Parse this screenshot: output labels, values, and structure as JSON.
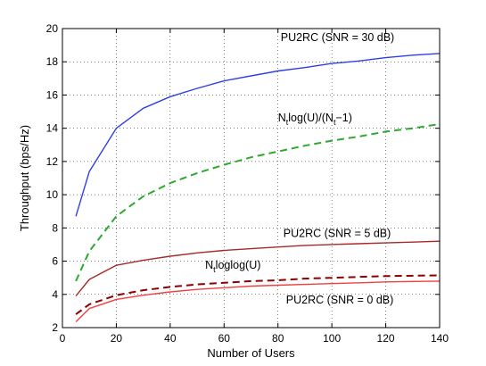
{
  "chart_data": {
    "type": "line",
    "xlabel": "Number of Users",
    "ylabel": "Throughput (bps/Hz)",
    "xlim": [
      0,
      140
    ],
    "ylim": [
      2,
      20
    ],
    "xticks": [
      0,
      20,
      40,
      60,
      80,
      100,
      120,
      140
    ],
    "yticks": [
      2,
      4,
      6,
      8,
      10,
      12,
      14,
      16,
      18,
      20
    ],
    "grid": "dotted",
    "legend": "none",
    "series": [
      {
        "id": "pu2rc_30db",
        "color": "#2f3fe6",
        "dash": "solid",
        "x": [
          5,
          10,
          20,
          30,
          40,
          50,
          60,
          70,
          80,
          90,
          100,
          110,
          120,
          130,
          140
        ],
        "y": [
          8.7,
          11.4,
          14.0,
          15.2,
          15.9,
          16.4,
          16.85,
          17.15,
          17.45,
          17.65,
          17.9,
          18.05,
          18.25,
          18.4,
          18.5
        ]
      },
      {
        "id": "nt_log_u",
        "color": "#2ea82e",
        "dash": "dashed",
        "x": [
          5,
          10,
          20,
          30,
          40,
          50,
          60,
          70,
          80,
          90,
          100,
          110,
          120,
          130,
          140
        ],
        "y": [
          4.8,
          6.6,
          8.7,
          9.9,
          10.7,
          11.3,
          11.8,
          12.25,
          12.6,
          12.95,
          13.25,
          13.5,
          13.8,
          14.0,
          14.25
        ]
      },
      {
        "id": "pu2rc_5db",
        "color": "#a52a2a",
        "dash": "solid",
        "x": [
          5,
          10,
          20,
          30,
          40,
          50,
          60,
          70,
          80,
          90,
          100,
          110,
          120,
          130,
          140
        ],
        "y": [
          3.9,
          4.9,
          5.75,
          6.05,
          6.3,
          6.5,
          6.65,
          6.75,
          6.85,
          6.95,
          7.0,
          7.05,
          7.1,
          7.15,
          7.2
        ]
      },
      {
        "id": "nt_loglog_u",
        "color": "#8b0000",
        "dash": "dashed",
        "x": [
          5,
          10,
          20,
          30,
          40,
          50,
          60,
          70,
          80,
          90,
          100,
          110,
          120,
          130,
          140
        ],
        "y": [
          2.8,
          3.4,
          3.95,
          4.25,
          4.45,
          4.6,
          4.7,
          4.8,
          4.85,
          4.95,
          5.0,
          5.05,
          5.1,
          5.12,
          5.15
        ]
      },
      {
        "id": "pu2rc_0db",
        "color": "#f04040",
        "dash": "solid",
        "x": [
          5,
          10,
          20,
          30,
          40,
          50,
          60,
          70,
          80,
          90,
          100,
          110,
          120,
          130,
          140
        ],
        "y": [
          2.35,
          3.15,
          3.7,
          3.95,
          4.15,
          4.3,
          4.4,
          4.5,
          4.55,
          4.6,
          4.65,
          4.7,
          4.75,
          4.78,
          4.8
        ]
      }
    ],
    "annotations": [
      {
        "id": "anno-30db",
        "text": "PU2RC (SNR = 30 dB)",
        "x": 81,
        "y": 19.25
      },
      {
        "id": "anno-ntlog",
        "x": 80,
        "y": 14.4,
        "parts": [
          "N",
          "t",
          "log(U)/(N",
          "t",
          "−1)"
        ]
      },
      {
        "id": "anno-5db",
        "text": "PU2RC (SNR = 5 dB)",
        "x": 82,
        "y": 7.45
      },
      {
        "id": "anno-ntloglog",
        "x": 53,
        "y": 5.55,
        "parts": [
          "N",
          "t",
          "loglog(U)"
        ]
      },
      {
        "id": "anno-0db",
        "text": "PU2RC (SNR = 0 dB)",
        "x": 83,
        "y": 3.45
      }
    ]
  }
}
